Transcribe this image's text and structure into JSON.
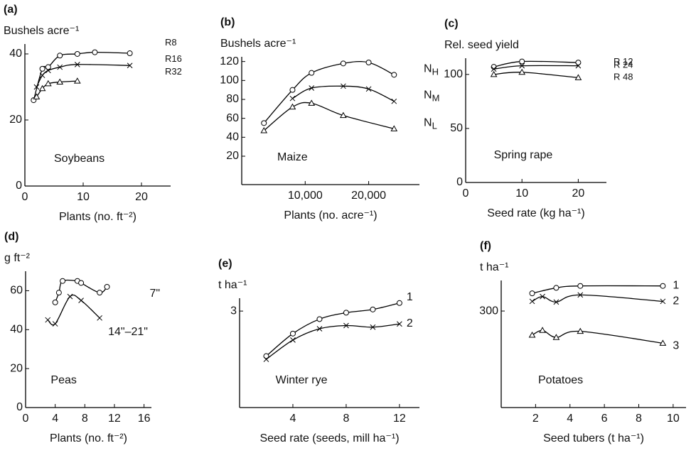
{
  "chart_data": [
    {
      "type": "line",
      "panel": "(a)",
      "ylabel": "Bushels acre⁻¹",
      "xlabel": "Plants (no. ft⁻²)",
      "annotation": "Soybeans",
      "xlim": [
        0,
        25
      ],
      "xticks": [
        0,
        10,
        20
      ],
      "ylim": [
        0,
        43
      ],
      "yticks": [
        0,
        20,
        40
      ],
      "series": [
        {
          "label": [
            "R8"
          ],
          "marker": "circle",
          "x": [
            1.5,
            3,
            4,
            6,
            9,
            12,
            18
          ],
          "values": [
            26,
            35.5,
            36,
            39.5,
            40,
            40.5,
            40.2
          ]
        },
        {
          "label": [
            "R16"
          ],
          "marker": "x",
          "x": [
            2,
            3,
            4,
            6,
            9,
            18
          ],
          "values": [
            30,
            33.5,
            35,
            36,
            36.8,
            36.5
          ]
        },
        {
          "label": [
            "R32"
          ],
          "marker": "triangle",
          "x": [
            2,
            3,
            4,
            6,
            9
          ],
          "values": [
            27,
            29.5,
            31,
            31.5,
            31.8
          ]
        }
      ]
    },
    {
      "type": "line",
      "panel": "(b)",
      "ylabel": "Bushels acre⁻¹",
      "xlabel": "Plants (no. acre⁻¹)",
      "annotation": "Maize",
      "xlim": [
        0,
        28000
      ],
      "xticks": [
        {
          "value": 10000,
          "label": "10,000"
        },
        {
          "value": 20000,
          "label": "20,000"
        }
      ],
      "ylim": [
        -10,
        125
      ],
      "yticks": [
        20,
        40,
        60,
        80,
        100,
        120
      ],
      "series": [
        {
          "label": [
            "N",
            "H"
          ],
          "marker": "circle",
          "x": [
            3500,
            8000,
            11000,
            16000,
            20000,
            24000
          ],
          "values": [
            55,
            90,
            108,
            118,
            119,
            106
          ]
        },
        {
          "label": [
            "N",
            "M"
          ],
          "marker": "x",
          "x": [
            8000,
            11000,
            16000,
            20000,
            24000
          ],
          "values": [
            81,
            92,
            94,
            91,
            78
          ]
        },
        {
          "label": [
            "N",
            "L"
          ],
          "marker": "triangle",
          "x": [
            3500,
            8000,
            11000,
            16000,
            24000
          ],
          "values": [
            47,
            72,
            76,
            63,
            49
          ]
        }
      ]
    },
    {
      "type": "line",
      "panel": "(c)",
      "ylabel": "Rel. seed yield",
      "xlabel": "Seed rate (kg ha⁻¹)",
      "annotation": "Spring rape",
      "xlim": [
        0,
        25
      ],
      "xticks": [
        0,
        10,
        20
      ],
      "ylim": [
        0,
        115
      ],
      "yticks": [
        0,
        50,
        100
      ],
      "series": [
        {
          "label": [
            "R 12"
          ],
          "marker": "circle",
          "x": [
            5,
            10,
            20
          ],
          "values": [
            107,
            112,
            111
          ]
        },
        {
          "label": [
            "R 24"
          ],
          "marker": "x",
          "x": [
            5,
            10,
            20
          ],
          "values": [
            105,
            108,
            108
          ]
        },
        {
          "label": [
            "R 48"
          ],
          "marker": "triangle",
          "x": [
            5,
            10,
            20
          ],
          "values": [
            100,
            102,
            97
          ]
        }
      ]
    },
    {
      "type": "line",
      "panel": "(d)",
      "ylabel": "g ft⁻²",
      "xlabel": "Plants (no. ft⁻²)",
      "annotation": "Peas",
      "xlim": [
        0,
        17
      ],
      "xticks": [
        0,
        4,
        8,
        12,
        16
      ],
      "ylim": [
        0,
        70
      ],
      "yticks": [
        0,
        20,
        40,
        60
      ],
      "series": [
        {
          "label": [
            "7\""
          ],
          "marker": "circle",
          "x": [
            4,
            4.5,
            5,
            7,
            7.5,
            10,
            11
          ],
          "values": [
            54,
            59,
            65,
            65,
            64,
            59,
            62
          ]
        },
        {
          "label": [
            "14\"–21\""
          ],
          "marker": "x",
          "x": [
            3,
            4,
            6,
            7.5,
            10
          ],
          "values": [
            45,
            43,
            57,
            55,
            46
          ]
        }
      ]
    },
    {
      "type": "line",
      "panel": "(e)",
      "ylabel": "t ha⁻¹",
      "xlabel": "Seed rate (seeds, mill ha⁻¹)",
      "annotation": "Winter rye",
      "xlim": [
        0,
        13.5
      ],
      "xticks": [
        4,
        8,
        12
      ],
      "ylim": [
        0,
        3.4
      ],
      "yticks": [
        3
      ],
      "series": [
        {
          "label": [
            "1"
          ],
          "marker": "circle",
          "x": [
            2,
            4,
            6,
            8,
            10,
            12
          ],
          "values": [
            1.6,
            2.3,
            2.75,
            2.95,
            3.05,
            3.25
          ]
        },
        {
          "label": [
            "2"
          ],
          "marker": "x",
          "x": [
            2,
            4,
            6,
            8,
            10,
            12
          ],
          "values": [
            1.5,
            2.1,
            2.45,
            2.55,
            2.5,
            2.6
          ]
        }
      ]
    },
    {
      "type": "line",
      "panel": "(f)",
      "ylabel": "t ha⁻¹",
      "xlabel": "Seed tubers (t ha⁻¹)",
      "annotation": "Potatoes",
      "xlim": [
        0,
        10.75
      ],
      "xticks": [
        2,
        4,
        6,
        8,
        10
      ],
      "ylim": [
        0,
        395
      ],
      "yticks": [
        300
      ],
      "series": [
        {
          "label": [
            "1"
          ],
          "marker": "circle",
          "x": [
            1.8,
            3.2,
            4.6,
            9.4
          ],
          "values": [
            355,
            372,
            378,
            378
          ]
        },
        {
          "label": [
            "2"
          ],
          "marker": "x",
          "x": [
            1.8,
            2.4,
            3.2,
            4.6,
            9.4
          ],
          "values": [
            330,
            345,
            328,
            350,
            330
          ]
        },
        {
          "label": [
            "3"
          ],
          "marker": "triangle",
          "x": [
            1.8,
            2.4,
            3.2,
            4.6,
            9.4
          ],
          "values": [
            225,
            240,
            218,
            237,
            200
          ]
        }
      ]
    }
  ]
}
